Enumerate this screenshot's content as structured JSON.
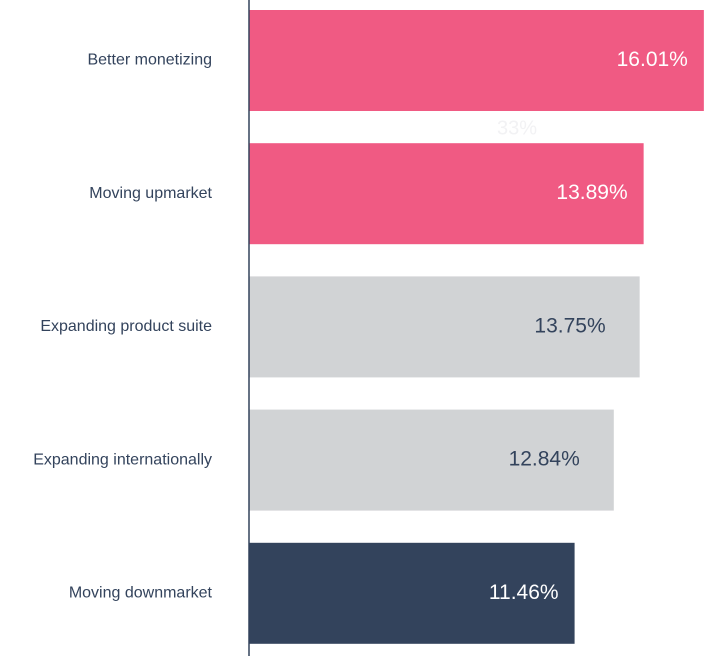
{
  "chart_data": {
    "type": "hbar",
    "categories": [
      "Better monetizing",
      "Moving upmarket",
      "Expanding product suite",
      "Expanding internationally",
      "Moving downmarket"
    ],
    "values": [
      16.01,
      13.89,
      13.75,
      12.84,
      11.46
    ],
    "value_labels": [
      "16.01%",
      "13.89%",
      "13.75%",
      "12.84%",
      "11.46%"
    ],
    "colors": [
      "#f05a83",
      "#f05a83",
      "#d1d3d5",
      "#d1d3d5",
      "#33435c"
    ],
    "annotation": "33%",
    "xlim": [
      0,
      16.05
    ]
  }
}
